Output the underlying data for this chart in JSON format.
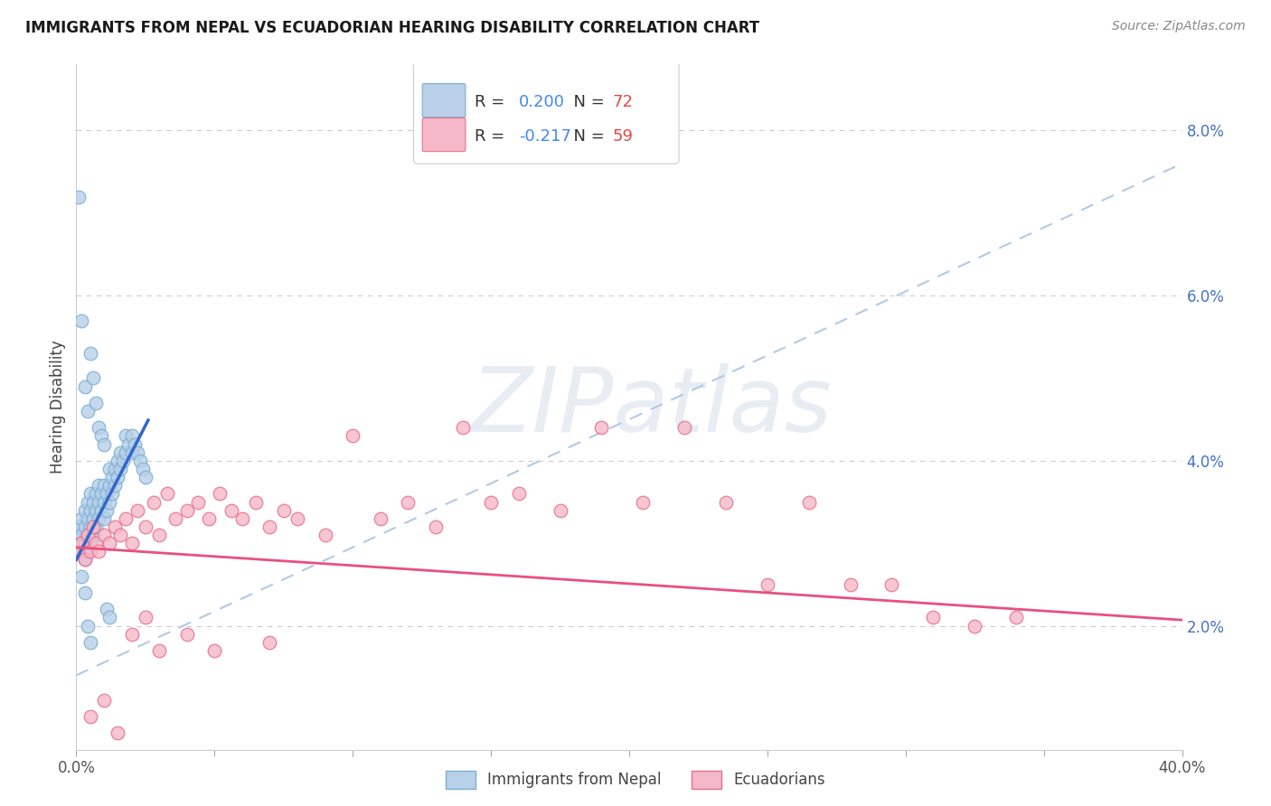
{
  "title": "IMMIGRANTS FROM NEPAL VS ECUADORIAN HEARING DISABILITY CORRELATION CHART",
  "source": "Source: ZipAtlas.com",
  "ylabel": "Hearing Disability",
  "ytick_vals": [
    0.02,
    0.04,
    0.06,
    0.08
  ],
  "ytick_labels": [
    "2.0%",
    "4.0%",
    "6.0%",
    "8.0%"
  ],
  "xlim": [
    0.0,
    0.4
  ],
  "ylim": [
    0.005,
    0.088
  ],
  "nepal_R": 0.2,
  "nepal_N": 72,
  "ecuador_R": -0.217,
  "ecuador_N": 59,
  "nepal_color": "#b8d0e8",
  "nepal_edge": "#7aafd4",
  "ecuador_color": "#f4b8c8",
  "ecuador_edge": "#e87090",
  "nepal_line_color": "#3366cc",
  "ecuador_line_color": "#e85080",
  "dashed_line_color": "#aac4e0",
  "legend_r_color": "#4488ee",
  "legend_n_color": "#ee4444",
  "background_color": "#ffffff",
  "grid_color": "#cccccc",
  "watermark": "ZIPatlas",
  "nepal_scatter_x": [
    0.0005,
    0.001,
    0.001,
    0.002,
    0.002,
    0.002,
    0.003,
    0.003,
    0.003,
    0.003,
    0.004,
    0.004,
    0.004,
    0.004,
    0.005,
    0.005,
    0.005,
    0.005,
    0.006,
    0.006,
    0.006,
    0.007,
    0.007,
    0.007,
    0.008,
    0.008,
    0.008,
    0.009,
    0.009,
    0.01,
    0.01,
    0.01,
    0.011,
    0.011,
    0.012,
    0.012,
    0.012,
    0.013,
    0.013,
    0.014,
    0.014,
    0.015,
    0.015,
    0.016,
    0.016,
    0.017,
    0.018,
    0.018,
    0.019,
    0.02,
    0.02,
    0.021,
    0.022,
    0.023,
    0.024,
    0.025,
    0.001,
    0.002,
    0.003,
    0.004,
    0.005,
    0.006,
    0.007,
    0.008,
    0.009,
    0.01,
    0.011,
    0.012,
    0.002,
    0.003,
    0.004,
    0.005
  ],
  "nepal_scatter_y": [
    0.031,
    0.03,
    0.032,
    0.029,
    0.031,
    0.033,
    0.028,
    0.03,
    0.032,
    0.034,
    0.029,
    0.031,
    0.033,
    0.035,
    0.03,
    0.032,
    0.034,
    0.036,
    0.031,
    0.033,
    0.035,
    0.032,
    0.034,
    0.036,
    0.033,
    0.035,
    0.037,
    0.034,
    0.036,
    0.033,
    0.035,
    0.037,
    0.034,
    0.036,
    0.035,
    0.037,
    0.039,
    0.036,
    0.038,
    0.037,
    0.039,
    0.038,
    0.04,
    0.039,
    0.041,
    0.04,
    0.041,
    0.043,
    0.042,
    0.041,
    0.043,
    0.042,
    0.041,
    0.04,
    0.039,
    0.038,
    0.072,
    0.057,
    0.049,
    0.046,
    0.053,
    0.05,
    0.047,
    0.044,
    0.043,
    0.042,
    0.022,
    0.021,
    0.026,
    0.024,
    0.02,
    0.018
  ],
  "ecuador_scatter_x": [
    0.001,
    0.002,
    0.003,
    0.004,
    0.005,
    0.006,
    0.007,
    0.008,
    0.01,
    0.012,
    0.014,
    0.016,
    0.018,
    0.02,
    0.022,
    0.025,
    0.028,
    0.03,
    0.033,
    0.036,
    0.04,
    0.044,
    0.048,
    0.052,
    0.056,
    0.06,
    0.065,
    0.07,
    0.075,
    0.08,
    0.09,
    0.1,
    0.11,
    0.12,
    0.13,
    0.14,
    0.15,
    0.16,
    0.175,
    0.19,
    0.205,
    0.22,
    0.235,
    0.25,
    0.265,
    0.28,
    0.295,
    0.31,
    0.325,
    0.34,
    0.005,
    0.01,
    0.015,
    0.02,
    0.025,
    0.03,
    0.04,
    0.05,
    0.07
  ],
  "ecuador_scatter_y": [
    0.029,
    0.03,
    0.028,
    0.031,
    0.029,
    0.032,
    0.03,
    0.029,
    0.031,
    0.03,
    0.032,
    0.031,
    0.033,
    0.03,
    0.034,
    0.032,
    0.035,
    0.031,
    0.036,
    0.033,
    0.034,
    0.035,
    0.033,
    0.036,
    0.034,
    0.033,
    0.035,
    0.032,
    0.034,
    0.033,
    0.031,
    0.043,
    0.033,
    0.035,
    0.032,
    0.044,
    0.035,
    0.036,
    0.034,
    0.044,
    0.035,
    0.044,
    0.035,
    0.025,
    0.035,
    0.025,
    0.025,
    0.021,
    0.02,
    0.021,
    0.009,
    0.011,
    0.007,
    0.019,
    0.021,
    0.017,
    0.019,
    0.017,
    0.018
  ],
  "nepal_line_x": [
    0.0,
    0.026
  ],
  "nepal_line_slope": 0.65,
  "nepal_line_intercept": 0.028,
  "ecuador_line_x": [
    0.0,
    0.4
  ],
  "ecuador_line_slope": -0.022,
  "ecuador_line_intercept": 0.0295,
  "dash_line_x": [
    0.0,
    0.4
  ],
  "dash_line_y0": 0.014,
  "dash_line_y1": 0.076
}
